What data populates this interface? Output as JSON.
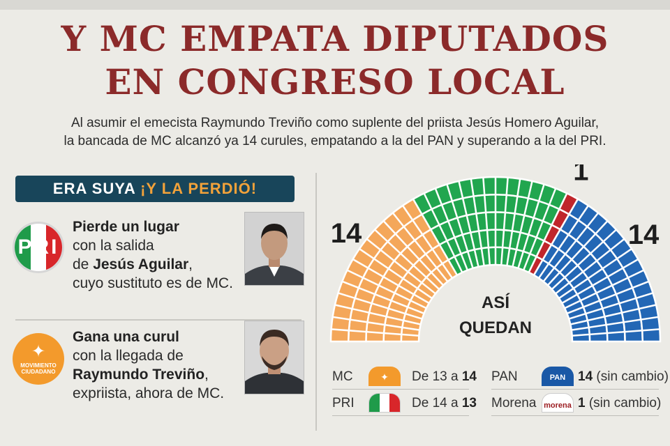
{
  "headline": {
    "line1": "Y MC EMPATA DIPUTADOS",
    "line2": "EN CONGRESO LOCAL"
  },
  "subtitle": {
    "line1": "Al asumir el emecista Raymundo Treviño como suplente del priista Jesús Homero Aguilar,",
    "line2": "la bancada de MC alcanzó ya 14 curules, empatando a la del PAN y superando a la del PRI."
  },
  "banner": {
    "part1": "ERA SUYA ",
    "part2": "¡Y LA PERDIÓ!"
  },
  "logos": {
    "pri_text": "PRI",
    "mc_lines": [
      "MOVIMIENTO",
      "CIUDADANO"
    ]
  },
  "pri_story": {
    "bold1": "Pierde un lugar",
    "line2": "con la salida",
    "line3_pre": "de ",
    "line3_bold": "Jesús Aguilar",
    "line3_post": ",",
    "line4": "cuyo sustituto es de MC."
  },
  "mc_story": {
    "bold1": "Gana una curul",
    "line2": "con la llegada de",
    "line3_bold": "Raymundo Treviño",
    "line3_post": ",",
    "line4": "expriista, ahora de MC."
  },
  "chart_data": {
    "type": "parliament",
    "center_label": [
      "ASÍ",
      "QUEDAN"
    ],
    "series": [
      {
        "name": "MC",
        "value": 14,
        "color": "#f4a75a"
      },
      {
        "name": "PRI",
        "value": 13,
        "color": "#21a64f"
      },
      {
        "name": "Morena",
        "value": 1,
        "color": "#c0262b"
      },
      {
        "name": "PAN",
        "value": 14,
        "color": "#2367b5"
      }
    ]
  },
  "legend": [
    {
      "party": "MC",
      "pre": "De 13 a ",
      "bold": "14",
      "post": "",
      "icon": "mc-logo-icon"
    },
    {
      "party": "PRI",
      "pre": "De 14 a ",
      "bold": "13",
      "post": "",
      "icon": "pri-logo-icon"
    },
    {
      "party": "PAN",
      "pre": "",
      "bold": "14",
      "post": " (sin cambio)",
      "icon": "pan-logo-icon",
      "icon_text": "PAN"
    },
    {
      "party": "Morena",
      "pre": "",
      "bold": "1",
      "post": " (sin cambio)",
      "icon": "morena-logo-icon",
      "icon_text": "morena"
    }
  ]
}
